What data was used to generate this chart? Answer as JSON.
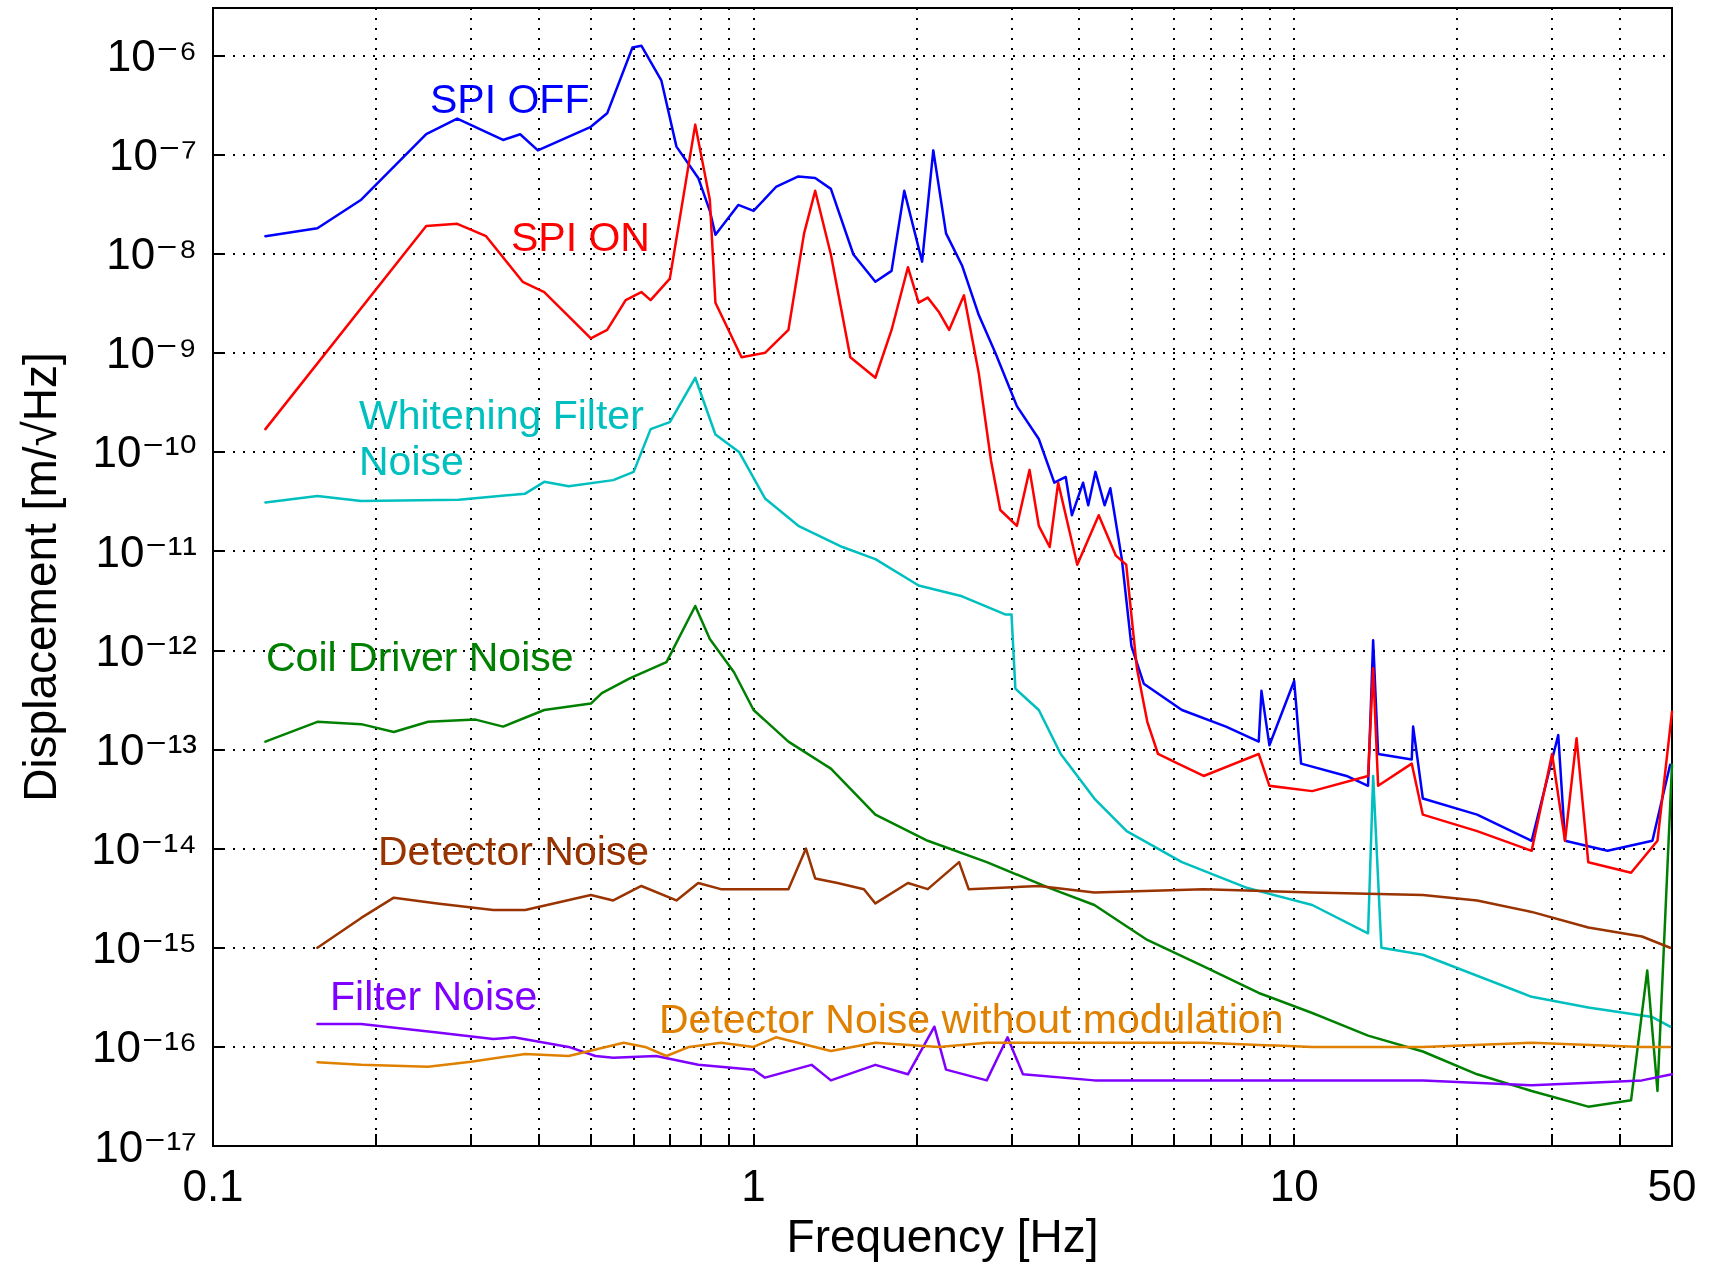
{
  "chart_data": {
    "type": "line",
    "xlabel": "Frequency [Hz]",
    "ylabel": "Displacement [m/√Hz]",
    "log": "xy",
    "grid": true,
    "legend": false,
    "marker": "none",
    "line_style": "solid",
    "xlim": [
      0.1,
      50
    ],
    "xticks": [
      0.1,
      {
        "value": 0.2,
        "label": null
      },
      {
        "value": 0.3,
        "label": null
      },
      {
        "value": 0.4,
        "label": null
      },
      {
        "value": 0.5,
        "label": null
      },
      {
        "value": 0.6,
        "label": null
      },
      {
        "value": 0.7,
        "label": null
      },
      {
        "value": 0.8,
        "label": null
      },
      {
        "value": 0.9,
        "label": null
      },
      1,
      {
        "value": 2,
        "label": null
      },
      {
        "value": 3,
        "label": null
      },
      {
        "value": 4,
        "label": null
      },
      {
        "value": 5,
        "label": null
      },
      {
        "value": 6,
        "label": null
      },
      {
        "value": 7,
        "label": null
      },
      {
        "value": 8,
        "label": null
      },
      {
        "value": 9,
        "label": null
      },
      10,
      {
        "value": 20,
        "label": null
      },
      {
        "value": 30,
        "label": null
      },
      {
        "value": 40,
        "label": null
      },
      50
    ],
    "ylim": [
      1e-17,
      3e-06
    ],
    "yticks": [
      {
        "value": 1e-17,
        "label": "10⁻¹⁷"
      },
      {
        "value": 1e-16,
        "label": "10⁻¹⁶"
      },
      {
        "value": 1e-15,
        "label": "10⁻¹⁵"
      },
      {
        "value": 1e-14,
        "label": "10⁻¹⁴"
      },
      {
        "value": 1e-13,
        "label": "10⁻¹³"
      },
      {
        "value": 1e-12,
        "label": "10⁻¹²"
      },
      {
        "value": 1e-11,
        "label": "10⁻¹¹"
      },
      {
        "value": 1e-10,
        "label": "10⁻¹⁰"
      },
      {
        "value": 1e-09,
        "label": "10⁻⁹"
      },
      {
        "value": 1e-08,
        "label": "10⁻⁸"
      },
      {
        "value": 1e-07,
        "label": "10⁻⁷"
      },
      {
        "value": 1e-06,
        "label": "10⁻⁶"
      }
    ],
    "series": [
      {
        "name": "SPI OFF",
        "color": "#0000ff",
        "x": [
          0.125,
          0.156,
          0.188,
          0.248,
          0.283,
          0.344,
          0.37,
          0.399,
          0.5,
          0.536,
          0.597,
          0.62,
          0.675,
          0.72,
          0.79,
          0.83,
          0.85,
          0.937,
          1.0,
          1.1,
          1.21,
          1.3,
          1.39,
          1.53,
          1.68,
          1.8,
          1.9,
          2.05,
          2.15,
          2.27,
          2.43,
          2.61,
          2.8,
          3.07,
          3.37,
          3.6,
          3.78,
          3.88,
          4.07,
          4.16,
          4.29,
          4.46,
          4.57,
          4.8,
          5.0,
          5.27,
          6.2,
          7.48,
          8.6,
          8.7,
          9.0,
          10,
          10.3,
          12.5,
          13.7,
          14.0,
          14.3,
          16.5,
          16.6,
          17.3,
          21.8,
          27.5,
          30.8,
          31.7,
          38,
          46,
          49.6
        ],
        "values": [
          1.5e-08,
          1.8e-08,
          3.5e-08,
          1.6e-07,
          2.3e-07,
          1.4e-07,
          1.6e-07,
          1.1e-07,
          1.9e-07,
          2.6e-07,
          1.2e-06,
          1.25e-06,
          5.6e-07,
          1.2e-07,
          5.8e-08,
          2.7e-08,
          1.55e-08,
          3.1e-08,
          2.7e-08,
          4.7e-08,
          6e-08,
          5.8e-08,
          4.5e-08,
          9.8e-09,
          5.2e-09,
          6.7e-09,
          4.3e-08,
          8.3e-09,
          1.1e-07,
          1.6e-08,
          7.6e-09,
          2.4e-09,
          1e-09,
          2.9e-10,
          1.35e-10,
          4.9e-11,
          5.6e-11,
          2.3e-11,
          4.9e-11,
          2.9e-11,
          6.3e-11,
          2.9e-11,
          4.3e-11,
          8.3e-12,
          1.1e-12,
          4.6e-13,
          2.5e-13,
          1.7e-13,
          1.2e-13,
          3.9e-13,
          1.1e-13,
          4.9e-13,
          7.2e-14,
          5.4e-14,
          4.3e-14,
          1.26e-12,
          9e-14,
          7.9e-14,
          1.7e-13,
          3.2e-14,
          2.2e-14,
          1.2e-14,
          1.4e-13,
          1.2e-14,
          9.5e-15,
          1.2e-14,
          7e-14
        ]
      },
      {
        "name": "SPI ON",
        "color": "#ff0000",
        "x": [
          0.125,
          0.248,
          0.283,
          0.32,
          0.374,
          0.41,
          0.5,
          0.536,
          0.58,
          0.62,
          0.645,
          0.7,
          0.78,
          0.83,
          0.85,
          0.92,
          0.95,
          1.05,
          1.16,
          1.24,
          1.3,
          1.39,
          1.51,
          1.68,
          1.8,
          1.93,
          2.02,
          2.1,
          2.2,
          2.3,
          2.45,
          2.61,
          2.75,
          2.86,
          3.07,
          3.24,
          3.37,
          3.53,
          3.66,
          3.78,
          3.97,
          4.35,
          4.68,
          4.89,
          5.12,
          5.35,
          5.6,
          6.8,
          8.6,
          9.0,
          10.8,
          13.7,
          14.0,
          14.3,
          16.5,
          17.3,
          21.8,
          27.5,
          30,
          31.7,
          33.3,
          35,
          42,
          47,
          50
        ],
        "values": [
          1.7e-10,
          1.9e-08,
          2e-08,
          1.5e-08,
          5.2e-09,
          4.1e-09,
          1.4e-09,
          1.7e-09,
          3.4e-09,
          4.1e-09,
          3.4e-09,
          5.6e-09,
          2e-07,
          3.5e-08,
          3.2e-09,
          1.3e-09,
          9e-10,
          1e-09,
          1.7e-09,
          1.6e-08,
          4.3e-08,
          9.8e-09,
          9e-10,
          5.6e-10,
          1.7e-09,
          7.3e-09,
          3.2e-09,
          3.6e-09,
          2.6e-09,
          1.7e-09,
          3.8e-09,
          6.2e-10,
          8.1e-11,
          2.6e-11,
          1.8e-11,
          6.6e-11,
          1.8e-11,
          1.1e-11,
          4.9e-11,
          2.3e-11,
          7.3e-12,
          2.3e-11,
          9e-12,
          7.3e-12,
          6.5e-13,
          1.9e-13,
          9e-14,
          5.4e-14,
          9e-14,
          4.3e-14,
          3.8e-14,
          5.4e-14,
          6.6e-13,
          4.3e-14,
          7.2e-14,
          2.2e-14,
          1.5e-14,
          9.5e-15,
          9e-14,
          1.2e-14,
          1.3e-13,
          7.3e-15,
          5.7e-15,
          1.2e-14,
          2.4e-13
        ]
      },
      {
        "name": "Whitening Filter Noise",
        "color": "#00bfbf",
        "x": [
          0.125,
          0.156,
          0.188,
          0.285,
          0.378,
          0.41,
          0.455,
          0.55,
          0.6,
          0.645,
          0.7,
          0.78,
          0.85,
          0.94,
          1.05,
          1.21,
          1.46,
          1.68,
          2.02,
          2.43,
          2.92,
          3.0,
          3.05,
          3.37,
          3.7,
          4.27,
          4.9,
          6.2,
          8.2,
          10.8,
          13.7,
          14.0,
          14.5,
          17.3,
          27.5,
          35,
          46,
          49.6
        ],
        "values": [
          3.1e-11,
          3.6e-11,
          3.2e-11,
          3.3e-11,
          3.8e-11,
          5e-11,
          4.5e-11,
          5.2e-11,
          6.3e-11,
          1.7e-10,
          2e-10,
          5.6e-10,
          1.5e-10,
          1e-10,
          3.4e-11,
          1.8e-11,
          1.1e-11,
          8.3e-12,
          4.5e-12,
          3.5e-12,
          2.3e-12,
          2.3e-12,
          4.1e-13,
          2.5e-13,
          9e-14,
          3.2e-14,
          1.5e-14,
          7.3e-15,
          4e-15,
          2.7e-15,
          1.4e-15,
          5.4e-14,
          1e-15,
          8.5e-16,
          3.2e-16,
          2.5e-16,
          2e-16,
          1.6e-16
        ]
      },
      {
        "name": "Coil Driver Noise",
        "color": "#008000",
        "x": [
          0.125,
          0.156,
          0.188,
          0.216,
          0.25,
          0.306,
          0.344,
          0.41,
          0.5,
          0.524,
          0.59,
          0.69,
          0.78,
          0.83,
          0.92,
          1.0,
          1.16,
          1.39,
          1.68,
          2.1,
          2.7,
          3.53,
          4.27,
          5.35,
          6.8,
          8.6,
          10.8,
          13.7,
          17.3,
          21.8,
          27.5,
          35,
          42,
          45,
          47,
          50
        ],
        "values": [
          1.2e-13,
          1.9e-13,
          1.8e-13,
          1.5e-13,
          1.9e-13,
          2e-13,
          1.7e-13,
          2.5e-13,
          2.9e-13,
          3.7e-13,
          5.2e-13,
          7.6e-13,
          2.8e-12,
          1.3e-12,
          6e-13,
          2.5e-13,
          1.2e-13,
          6.4e-14,
          2.2e-14,
          1.2e-14,
          7.3e-15,
          4e-15,
          2.7e-15,
          1.2e-15,
          6.5e-16,
          3.5e-16,
          2.2e-16,
          1.3e-16,
          9e-17,
          5.3e-17,
          3.6e-17,
          2.5e-17,
          2.9e-17,
          5.9e-16,
          3.6e-17,
          7e-14
        ]
      },
      {
        "name": "Detector Noise",
        "color": "#993300",
        "x": [
          0.156,
          0.188,
          0.216,
          0.26,
          0.33,
          0.378,
          0.5,
          0.55,
          0.62,
          0.72,
          0.79,
          0.87,
          1.05,
          1.16,
          1.25,
          1.3,
          1.43,
          1.6,
          1.68,
          1.93,
          2.1,
          2.4,
          2.5,
          3.37,
          4.27,
          6.8,
          10.8,
          17.3,
          21.8,
          27.5,
          35,
          44,
          49.6
        ],
        "values": [
          1e-15,
          2e-15,
          3.2e-15,
          2.8e-15,
          2.4e-15,
          2.4e-15,
          3.4e-15,
          3e-15,
          4.2e-15,
          3e-15,
          4.5e-15,
          3.9e-15,
          3.9e-15,
          3.9e-15,
          1e-14,
          5e-15,
          4.5e-15,
          3.9e-15,
          2.8e-15,
          4.5e-15,
          3.9e-15,
          7.3e-15,
          3.9e-15,
          4.2e-15,
          3.6e-15,
          3.9e-15,
          3.6e-15,
          3.4e-15,
          3e-15,
          2.3e-15,
          1.6e-15,
          1.3e-15,
          1e-15
        ]
      },
      {
        "name": "Filter Noise",
        "color": "#8000ff",
        "x": [
          0.156,
          0.188,
          0.26,
          0.33,
          0.36,
          0.455,
          0.51,
          0.55,
          0.66,
          0.79,
          1.0,
          1.05,
          1.28,
          1.39,
          1.68,
          1.93,
          2.16,
          2.27,
          2.7,
          2.95,
          3.15,
          4.27,
          6.8,
          10.8,
          17.3,
          27.5,
          44,
          50
        ],
        "values": [
          1.7e-16,
          1.7e-16,
          1.4e-16,
          1.2e-16,
          1.25e-16,
          1e-16,
          8.1e-17,
          7.8e-17,
          8.1e-17,
          6.6e-17,
          5.9e-17,
          4.9e-17,
          6.6e-17,
          4.6e-17,
          6.6e-17,
          5.3e-17,
          1.6e-16,
          5.9e-17,
          4.6e-17,
          1.25e-16,
          5.3e-17,
          4.6e-17,
          4.6e-17,
          4.6e-17,
          4.6e-17,
          4.1e-17,
          4.6e-17,
          5.3e-17
        ]
      },
      {
        "name": "Detector Noise without modulation",
        "color": "#e08000",
        "x": [
          0.156,
          0.188,
          0.25,
          0.3,
          0.378,
          0.455,
          0.575,
          0.63,
          0.69,
          0.76,
          0.87,
          1.0,
          1.1,
          1.39,
          1.68,
          2.2,
          2.7,
          4.27,
          6.8,
          10.8,
          17.3,
          27.5,
          44,
          49.6
        ],
        "values": [
          7e-17,
          6.6e-17,
          6.3e-17,
          7.1e-17,
          8.5e-17,
          8.1e-17,
          1.1e-16,
          1e-16,
          8.1e-17,
          1e-16,
          1.1e-16,
          1e-16,
          1.25e-16,
          9.1e-17,
          1.1e-16,
          1e-16,
          1.1e-16,
          1.1e-16,
          1.1e-16,
          1e-16,
          1e-16,
          1.1e-16,
          1e-16,
          1e-16
        ]
      }
    ]
  }
}
